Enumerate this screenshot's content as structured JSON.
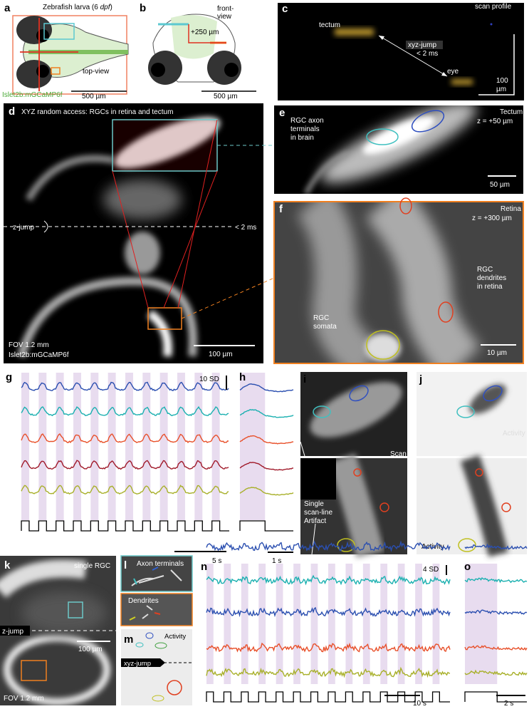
{
  "panels": {
    "a": {
      "label": "a",
      "title": [
        "Zebrafish larva (6 ",
        "dpf",
        ")"
      ],
      "view": "top-view",
      "line": "Islet2b:mGCaMP6f",
      "scale": "500 µm"
    },
    "b": {
      "label": "b",
      "view": [
        "front-",
        "view"
      ],
      "depth": "+250 µm",
      "scale": "500 µm"
    },
    "c": {
      "label": "c",
      "title": "scan profile",
      "tectum": "tectum",
      "jump": [
        "xyz-jump",
        "< 2 ms"
      ],
      "eye": "eye",
      "scale": [
        "100",
        "µm"
      ]
    },
    "d": {
      "label": "d",
      "title": "XYZ random access: RGCs in retina and tectum",
      "jump": "z-jump",
      "time": "< 2 ms",
      "fov": "FOV 1.2 mm",
      "line": "Islet2b:mGCaMP6f",
      "scale": "100 µm"
    },
    "e": {
      "label": "e",
      "region": "Tectum",
      "depth": "z = +50 µm",
      "text": [
        "RGC axon",
        "terminals",
        "in brain"
      ],
      "scale": "50 µm"
    },
    "f": {
      "label": "f",
      "region": "Retina",
      "depth": "z = +300 µm",
      "dendrites": [
        "RGC",
        "dendrites",
        "in retina"
      ],
      "somata": [
        "RGC",
        "somata"
      ],
      "scale": "10 µm"
    },
    "g": {
      "label": "g",
      "scale_y": "10 SD",
      "scale_x": "5 s"
    },
    "h": {
      "label": "h",
      "scale_x": "1 s"
    },
    "i": {
      "label": "i",
      "scan": "Scan",
      "artifact": [
        "Single",
        "scan-line",
        "Artifact"
      ]
    },
    "j": {
      "label": "j",
      "activity_top": "Activity",
      "activity": "Activity"
    },
    "k": {
      "label": "k",
      "title": "single RGC",
      "jump": "z-jump",
      "scale": "100 µm",
      "fov": "FOV 1.2 mm"
    },
    "l": {
      "label": "l",
      "axon": "Axon terminals",
      "dendrites": "Dendrites"
    },
    "m": {
      "label": "m",
      "activity": "Activity",
      "jump": "xyz-jump"
    },
    "n": {
      "label": "n",
      "scale_y": "4 SD",
      "scale_x": "10 s"
    },
    "o": {
      "label": "o",
      "scale_x": "2 s"
    }
  }
}
